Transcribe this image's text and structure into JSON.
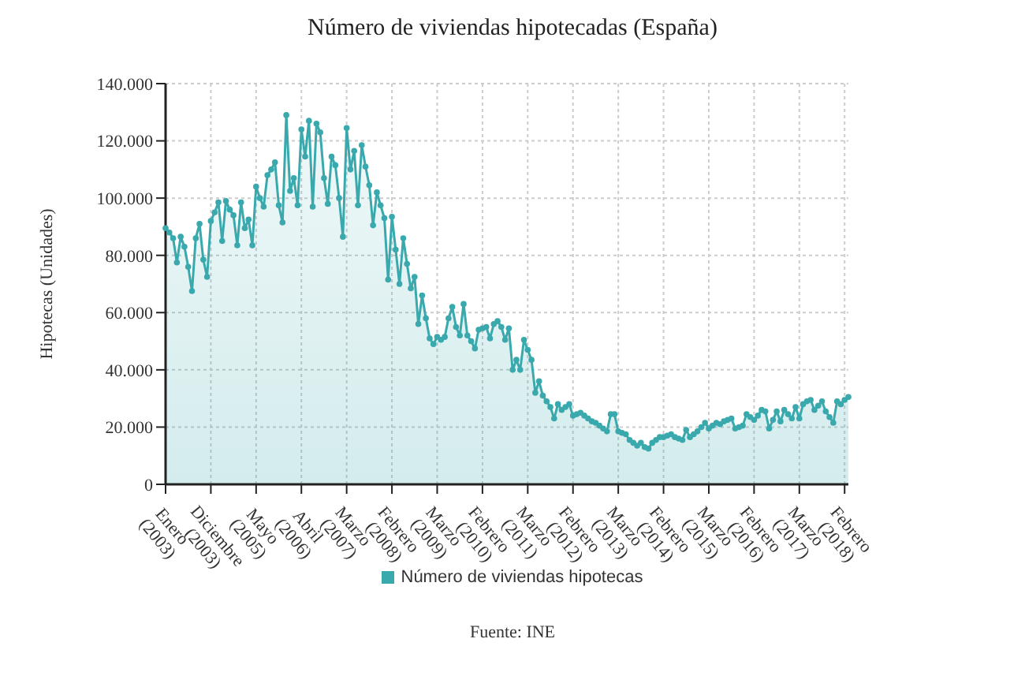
{
  "chart_data": {
    "type": "area",
    "title": "Número de viviendas hipotecadas (España)",
    "ylabel": "Hipotecas (Unidades)",
    "categories": [
      "Enero (2003)",
      null,
      null,
      null,
      null,
      null,
      null,
      null,
      null,
      null,
      null,
      null,
      "Diciembre (2003)",
      null,
      null,
      null,
      null,
      null,
      null,
      null,
      null,
      null,
      null,
      null,
      "Mayo (2005)",
      null,
      null,
      null,
      null,
      null,
      null,
      null,
      null,
      null,
      null,
      null,
      "Abril (2006)",
      null,
      null,
      null,
      null,
      null,
      null,
      null,
      null,
      null,
      null,
      null,
      "Marzo (2007)",
      null,
      null,
      null,
      null,
      null,
      null,
      null,
      null,
      null,
      null,
      null,
      "Febrero (2008)",
      null,
      null,
      null,
      null,
      null,
      null,
      null,
      null,
      null,
      null,
      null,
      "Marzo (2009)",
      null,
      null,
      null,
      null,
      null,
      null,
      null,
      null,
      null,
      null,
      null,
      "Febrero (2010)",
      null,
      null,
      null,
      null,
      null,
      null,
      null,
      null,
      null,
      null,
      null,
      "Marzo (2011)",
      null,
      null,
      null,
      null,
      null,
      null,
      null,
      null,
      null,
      null,
      null,
      "Febrero (2012)",
      null,
      null,
      null,
      null,
      null,
      null,
      null,
      null,
      null,
      null,
      null,
      "Marzo (2013)",
      null,
      null,
      null,
      null,
      null,
      null,
      null,
      null,
      null,
      null,
      null,
      "Febrero (2014)",
      null,
      null,
      null,
      null,
      null,
      null,
      null,
      null,
      null,
      null,
      null,
      "Marzo (2015)",
      null,
      null,
      null,
      null,
      null,
      null,
      null,
      null,
      null,
      null,
      null,
      "Febrero (2016)",
      null,
      null,
      null,
      null,
      null,
      null,
      null,
      null,
      null,
      null,
      null,
      "Marzo (2017)",
      null,
      null,
      null,
      null,
      null,
      null,
      null,
      null,
      null,
      null,
      null,
      "Febrero (2018)",
      null
    ],
    "series": [
      {
        "name": "Número de viviendas hipotecas",
        "color": "#3aa9ad",
        "values": [
          89500,
          88000,
          86000,
          77500,
          86500,
          83000,
          76000,
          67500,
          86000,
          91000,
          78500,
          72500,
          92000,
          95000,
          98500,
          85000,
          99000,
          96000,
          94000,
          83500,
          98500,
          89500,
          92500,
          83500,
          104000,
          100000,
          97000,
          108000,
          110000,
          112500,
          97500,
          91500,
          129000,
          102500,
          107000,
          97500,
          124000,
          114500,
          127000,
          97000,
          126000,
          123000,
          107000,
          98000,
          114500,
          111500,
          100000,
          86500,
          124500,
          110000,
          116500,
          97500,
          118500,
          111000,
          104500,
          90500,
          102000,
          97500,
          93000,
          71500,
          93500,
          82000,
          70000,
          86000,
          77000,
          68500,
          72500,
          56000,
          66000,
          58000,
          51000,
          49000,
          51500,
          50500,
          51500,
          58000,
          62000,
          55000,
          52000,
          63000,
          52000,
          50000,
          47500,
          54000,
          54500,
          55000,
          51000,
          56000,
          57000,
          55000,
          50500,
          54500,
          40000,
          43500,
          40000,
          50500,
          47000,
          43500,
          32000,
          36000,
          31000,
          29000,
          27000,
          23000,
          28000,
          26000,
          27000,
          28000,
          24000,
          24500,
          25000,
          24000,
          23000,
          22000,
          21500,
          20500,
          19500,
          18500,
          24500,
          24500,
          18500,
          18000,
          17500,
          15500,
          14500,
          13500,
          14500,
          13000,
          12500,
          14500,
          15500,
          16500,
          16500,
          17000,
          17500,
          16500,
          16000,
          15500,
          19000,
          16500,
          17500,
          18500,
          20000,
          21500,
          19500,
          20500,
          21500,
          21000,
          22000,
          22500,
          23000,
          19500,
          20000,
          20500,
          24500,
          23500,
          22500,
          24000,
          26000,
          25500,
          19500,
          22500,
          25500,
          22000,
          26000,
          24500,
          23000,
          27000,
          23000,
          28000,
          29000,
          29500,
          26000,
          27500,
          29000,
          25500,
          23500,
          21500,
          29000,
          28000,
          29500,
          30500
        ]
      }
    ],
    "ylim": [
      0,
      140000
    ],
    "yticks": [
      {
        "value": 0,
        "label": "0"
      },
      {
        "value": 20000,
        "label": "20.000"
      },
      {
        "value": 40000,
        "label": "40.000"
      },
      {
        "value": 60000,
        "label": "60.000"
      },
      {
        "value": 80000,
        "label": "80.000"
      },
      {
        "value": 100000,
        "label": "100.000"
      },
      {
        "value": 120000,
        "label": "120.000"
      },
      {
        "value": 140000,
        "label": "140.000"
      }
    ],
    "grid": true,
    "legend": "bottom",
    "marker": "circle",
    "annotations": [
      "Fuente: INE"
    ]
  }
}
